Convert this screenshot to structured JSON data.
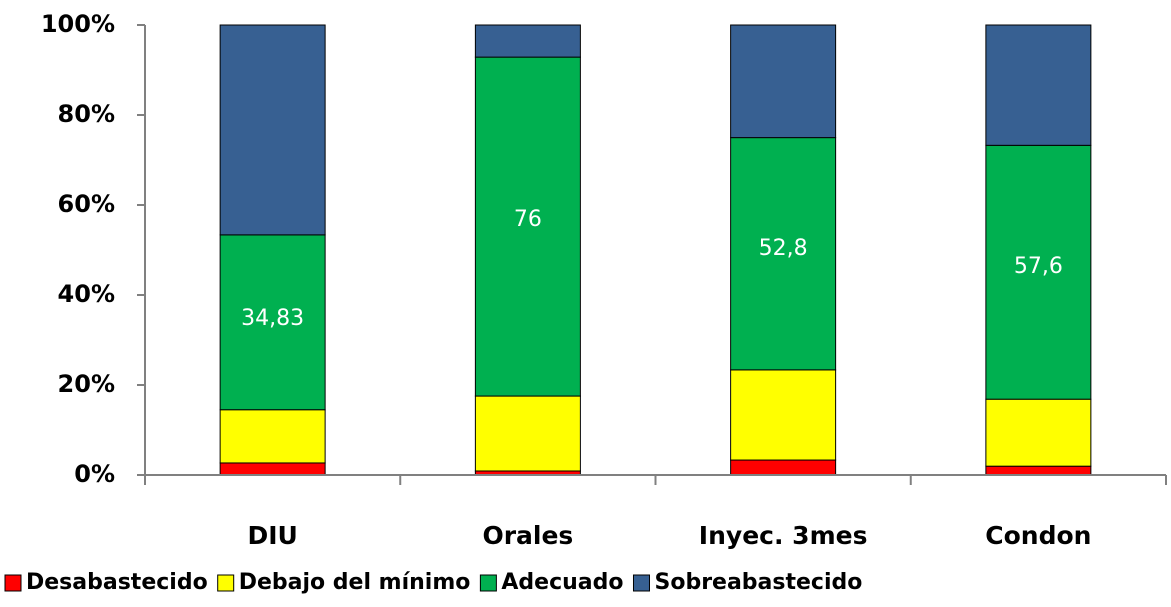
{
  "chart_data": {
    "type": "bar",
    "stacking": "percent",
    "categories": [
      "DIU",
      "Orales",
      "Inyec. 3mes",
      "Condon"
    ],
    "series": [
      {
        "name": "Desabastecido",
        "color": "#ff0000",
        "values": [
          2.4,
          0.9,
          3.4,
          2
        ]
      },
      {
        "name": "Debajo del mínimo",
        "color": "#ffff00",
        "values": [
          10.6,
          16.8,
          20.5,
          15.2
        ]
      },
      {
        "name": "Adecuado",
        "color": "#00b050",
        "values": [
          34.83,
          76,
          52.8,
          57.6
        ],
        "value_labels": [
          "34,83",
          "76",
          "52,8",
          "57,6"
        ]
      },
      {
        "name": "Sobreabastecido",
        "color": "#376092",
        "values": [
          41.8,
          7.2,
          25.6,
          27.3
        ]
      }
    ],
    "ylim": [
      0,
      100
    ],
    "yticks": [
      {
        "value": 0,
        "label": "0%"
      },
      {
        "value": 20,
        "label": "20%"
      },
      {
        "value": 40,
        "label": "40%"
      },
      {
        "value": 60,
        "label": "60%"
      },
      {
        "value": 80,
        "label": "80%"
      },
      {
        "value": 100,
        "label": "100%"
      }
    ],
    "legend": "bottom"
  }
}
